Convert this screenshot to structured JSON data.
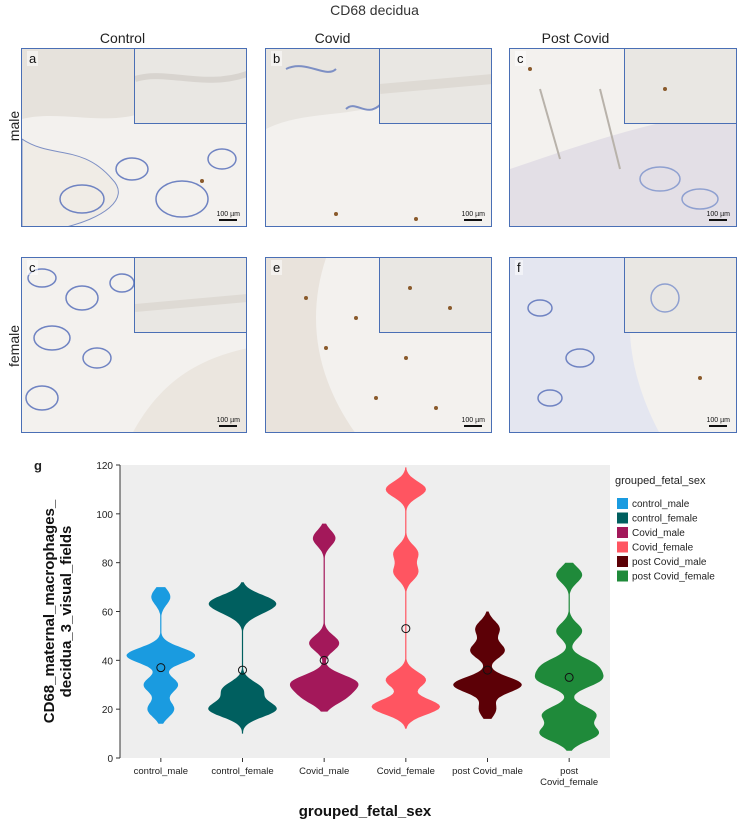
{
  "figure": {
    "title": "CD68 decidua",
    "columns": [
      "Control",
      "Covid",
      "Post Covid"
    ],
    "rows": [
      "male",
      "female"
    ],
    "panels": [
      {
        "letter": "a",
        "scale": "100 µm"
      },
      {
        "letter": "b",
        "scale": "100 µm"
      },
      {
        "letter": "c",
        "scale": "100 µm"
      },
      {
        "letter": "c",
        "scale": "100 µm"
      },
      {
        "letter": "e",
        "scale": "100 µm"
      },
      {
        "letter": "f",
        "scale": "100 µm"
      }
    ],
    "chart_label": "g"
  },
  "colors": {
    "panel_border": "#4a6fb5",
    "plot_bg": "#eeeeee"
  },
  "chart_data": {
    "type": "violin",
    "xlabel": "grouped_fetal_sex",
    "ylabel": "CD68_maternal_macrophages_\ndecidua_3_visual_fields",
    "ylim": [
      0,
      120
    ],
    "yticks": [
      0,
      20,
      40,
      60,
      80,
      100,
      120
    ],
    "legend_title": "grouped_fetal_sex",
    "legend_position": "right",
    "groups": [
      {
        "name": "control_male",
        "tick": "control_male",
        "color": "#1a9be0",
        "mean": 37,
        "modes": [
          [
            66,
            0.25
          ],
          [
            42,
            0.9
          ],
          [
            30,
            0.45
          ],
          [
            20,
            0.35
          ]
        ],
        "range": [
          14,
          70
        ]
      },
      {
        "name": "control_female",
        "tick": "control_female",
        "color": "#005f5f",
        "mean": 36,
        "modes": [
          [
            64,
            0.7
          ],
          [
            60,
            0.3
          ],
          [
            28,
            0.5
          ],
          [
            20,
            0.85
          ]
        ],
        "range": [
          10,
          72
        ]
      },
      {
        "name": "Covid_male",
        "tick": "Covid_male",
        "color": "#a3185a",
        "mean": 40,
        "modes": [
          [
            90,
            0.3
          ],
          [
            47,
            0.4
          ],
          [
            31,
            0.8
          ],
          [
            25,
            0.5
          ]
        ],
        "range": [
          19,
          96
        ]
      },
      {
        "name": "Covid_female",
        "tick": "Covid_female",
        "color": "#ff5561",
        "mean": 53,
        "modes": [
          [
            110,
            0.5
          ],
          [
            84,
            0.3
          ],
          [
            76,
            0.3
          ],
          [
            32,
            0.5
          ],
          [
            21,
            0.85
          ]
        ],
        "range": [
          12,
          119
        ]
      },
      {
        "name": "post Covid_male",
        "tick": "post Covid_male",
        "color": "#5c0006",
        "mean": 36,
        "modes": [
          [
            53,
            0.35
          ],
          [
            44,
            0.5
          ],
          [
            30,
            1.0
          ],
          [
            20,
            0.25
          ]
        ],
        "range": [
          16,
          60
        ]
      },
      {
        "name": "post Covid_female",
        "tick": "post\nCovid_female",
        "color": "#1f8a3a",
        "mean": 33,
        "modes": [
          [
            75,
            0.25
          ],
          [
            52,
            0.25
          ],
          [
            38,
            0.45
          ],
          [
            32,
            0.55
          ],
          [
            18,
            0.5
          ],
          [
            10,
            0.55
          ]
        ],
        "range": [
          3,
          80
        ]
      }
    ]
  }
}
